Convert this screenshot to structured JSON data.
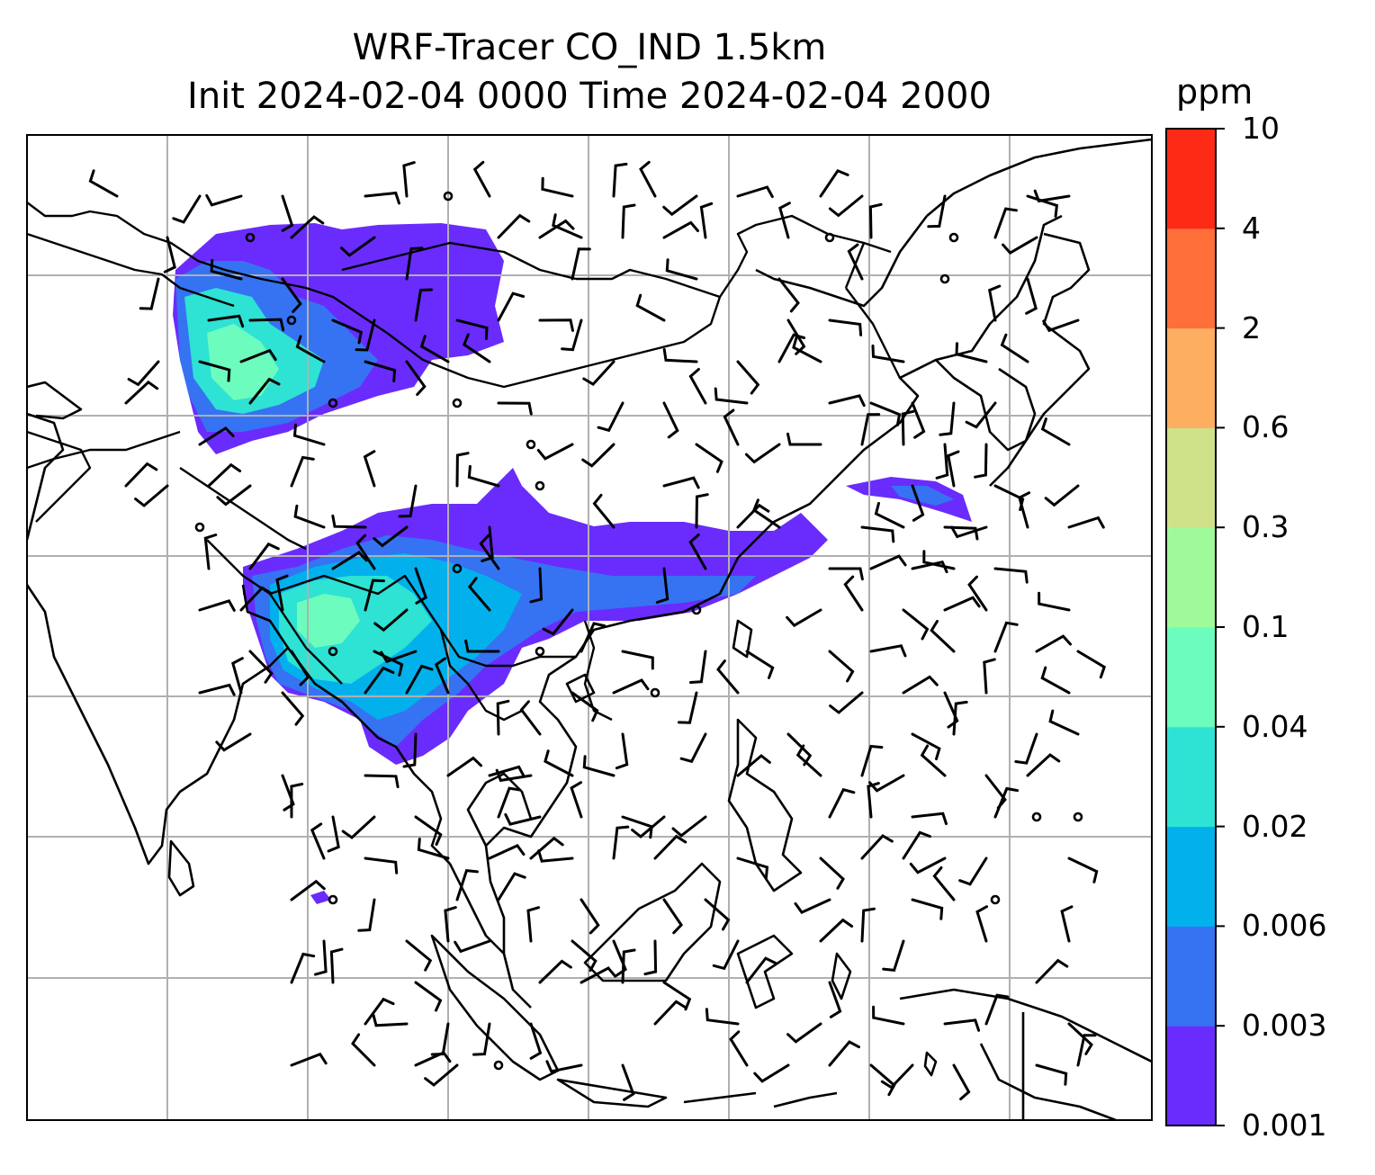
{
  "title": {
    "line1": "WRF-Tracer CO_IND 1.5km",
    "line2": "Init 2024-02-04 0000 Time 2024-02-04 2000"
  },
  "colorbar": {
    "unit": "ppm",
    "levels": [
      "0.001",
      "0.003",
      "0.006",
      "0.02",
      "0.04",
      "0.1",
      "0.3",
      "0.6",
      "2",
      "4",
      "10"
    ],
    "colors": [
      "#6a2cfc",
      "#3573f3",
      "#02b1ec",
      "#2ee2d4",
      "#6cfcbd",
      "#9ffa9a",
      "#cfe189",
      "#fdae61",
      "#fe6f3a",
      "#fd2a16"
    ]
  },
  "chart_data": {
    "type": "heatmap",
    "variable": "CO_IND",
    "units": "ppm",
    "plumes": [
      {
        "region": "northwest",
        "max_level": "0.1"
      },
      {
        "region": "central",
        "max_level": "0.1"
      },
      {
        "region": "east",
        "max_level": "0.006"
      }
    ],
    "overlays": [
      "coastlines",
      "country-borders",
      "lat-lon-gridlines",
      "wind-barbs"
    ],
    "grid": true
  }
}
